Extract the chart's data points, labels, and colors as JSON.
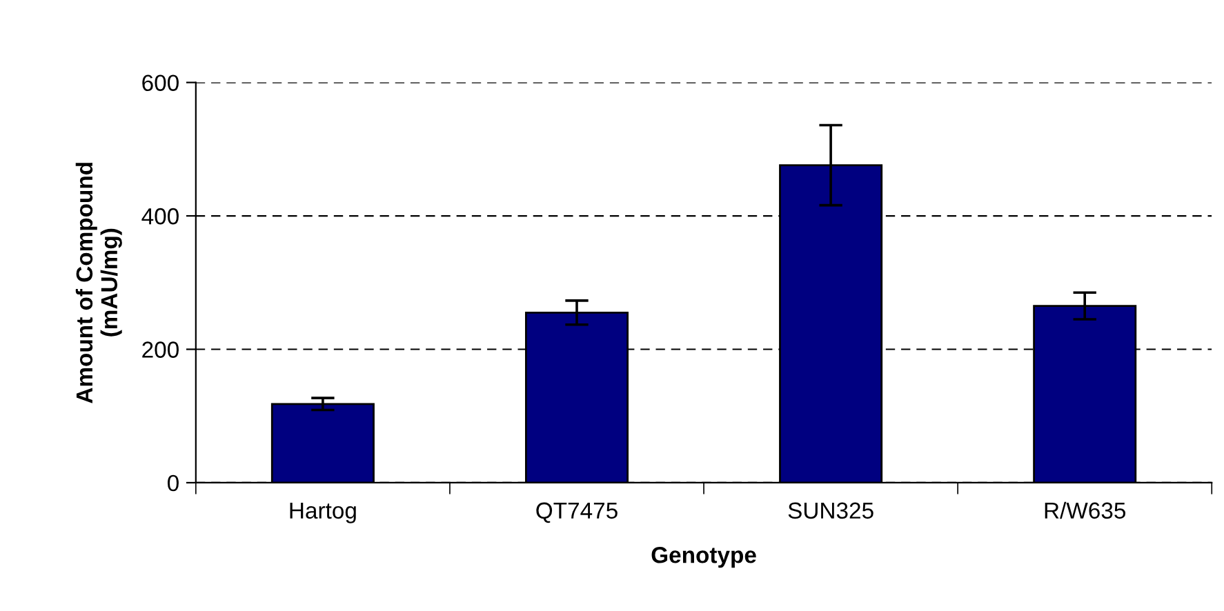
{
  "chart_data": {
    "type": "bar",
    "xlabel": "Genotype",
    "ylabel": "Amount of Compound\n(mAU/mg)",
    "categories": [
      "Hartog",
      "QT7475",
      "SUN325",
      "R/W635"
    ],
    "values": [
      118,
      255,
      476,
      265
    ],
    "errors": [
      9,
      18,
      60,
      20
    ],
    "color": "#000080",
    "ylim": [
      0,
      600
    ],
    "yticks": [
      0,
      200,
      400,
      600
    ],
    "grid": "y"
  }
}
